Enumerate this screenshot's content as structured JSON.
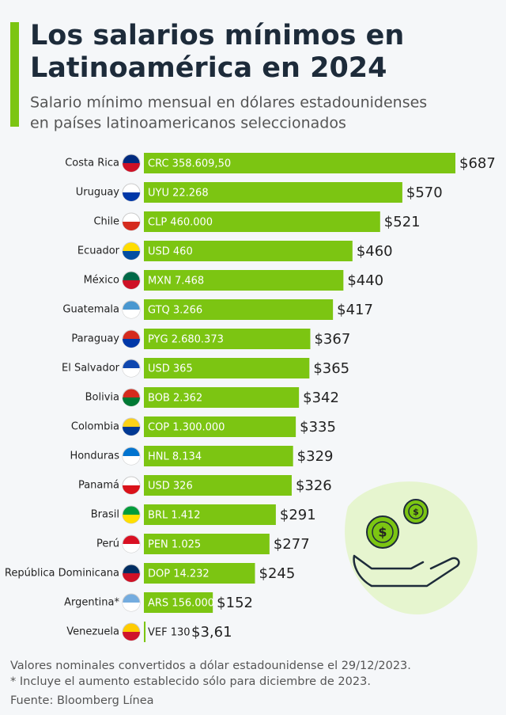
{
  "chart_data": {
    "type": "hbar",
    "title": [
      "Los salarios mínimos en",
      "Latinoamérica en 2024"
    ],
    "subtitle": [
      "Salario mínimo mensual en dólares estadounidenses",
      "en países latinoamericanos seleccionados"
    ],
    "categories": [
      "Costa Rica",
      "Uruguay",
      "Chile",
      "Ecuador",
      "México",
      "Guatemala",
      "Paraguay",
      "El Salvador",
      "Bolivia",
      "Colombia",
      "Honduras",
      "Panamá",
      "Brasil",
      "Perú",
      "República Dominicana",
      "Argentina*",
      "Venezuela"
    ],
    "values": [
      687,
      570,
      521,
      460,
      440,
      417,
      367,
      365,
      342,
      335,
      329,
      326,
      291,
      277,
      245,
      152,
      3.61
    ],
    "value_labels": [
      "$687",
      "$570",
      "$521",
      "$460",
      "$440",
      "$417",
      "$367",
      "$365",
      "$342",
      "$335",
      "$329",
      "$326",
      "$291",
      "$277",
      "$245",
      "$152",
      "$3,61"
    ],
    "local_labels": [
      "CRC 358.609,50",
      "UYU 22.268",
      "CLP 460.000",
      "USD 460",
      "MXN 7.468",
      "GTQ 3.266",
      "PYG 2.680.373",
      "USD 365",
      "BOB 2.362",
      "COP 1.300.000",
      "HNL 8.134",
      "USD 326",
      "BRL 1.412",
      "PEN 1.025",
      "DOP 14.232",
      "ARS 156.000",
      "VEF 130"
    ],
    "color": "#7cc512",
    "notes": [
      "Valores nominales convertidos a dólar estadounidense el 29/12/2023.",
      "* Incluye el aumento establecido sólo para diciembre de 2023.",
      "Fuente: Bloomberg Línea"
    ]
  }
}
